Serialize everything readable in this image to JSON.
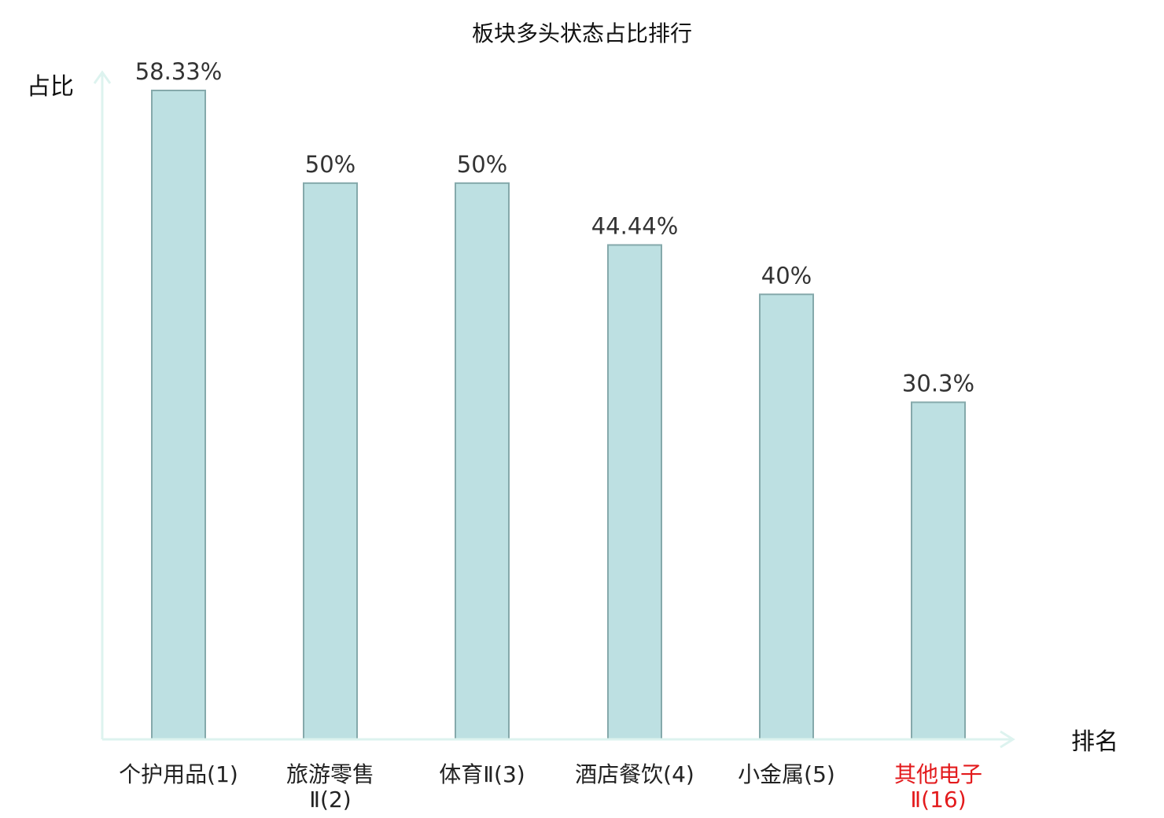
{
  "chart_data": {
    "type": "bar",
    "title": "板块多头状态占比排行",
    "ylabel": "占比",
    "xlabel": "排名",
    "ylim": [
      0,
      60
    ],
    "grid": false,
    "categories": [
      {
        "line1": "个护用品(1)",
        "line2": "",
        "highlight": false
      },
      {
        "line1": "旅游零售",
        "line2": "Ⅱ(2)",
        "highlight": false
      },
      {
        "line1": "体育Ⅱ(3)",
        "line2": "",
        "highlight": false
      },
      {
        "line1": "酒店餐饮(4)",
        "line2": "",
        "highlight": false
      },
      {
        "line1": "小金属(5)",
        "line2": "",
        "highlight": false
      },
      {
        "line1": "其他电子",
        "line2": "Ⅱ(16)",
        "highlight": true
      }
    ],
    "values": [
      58.33,
      50,
      50,
      44.44,
      40,
      30.3
    ],
    "value_labels": [
      "58.33%",
      "50%",
      "50%",
      "44.44%",
      "40%",
      "30.3%"
    ],
    "colors": {
      "bar_fill": "#bde0e2",
      "bar_stroke": "#85a9ab",
      "axis": "#ddf3ef",
      "label": "#222222",
      "highlight": "#e31a1c"
    }
  }
}
